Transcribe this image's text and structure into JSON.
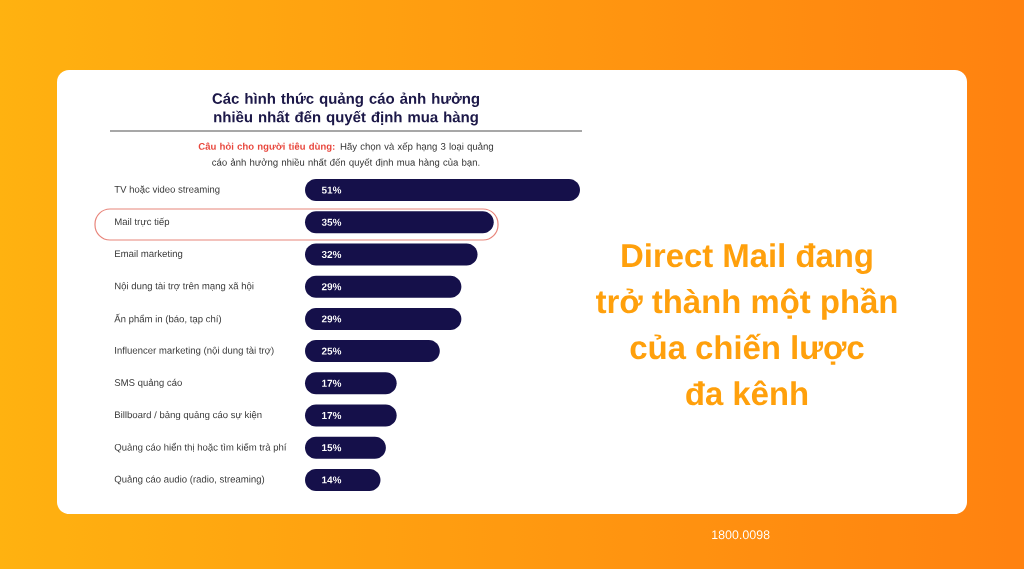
{
  "chart_data": {
    "type": "bar",
    "orientation": "horizontal",
    "title": "Các hình thức quảng cáo ảnh hưởng nhiều nhất đến quyết định mua hàng",
    "subtitle": "**Câu hỏi cho người tiêu dùng:** Hãy chọn và xếp hạng 3 loại quảng cáo ảnh hưởng nhiều nhất đến quyết định mua hàng của bạn.",
    "categories": [
      "TV hoặc video streaming",
      "Mail trực tiếp",
      "Email marketing",
      "Nội dung tài trợ trên mạng xã hội",
      "Ấn phẩm in (báo, tạp chí)",
      "Influencer marketing (nội dung tài trợ)",
      "SMS quảng cáo",
      "Billboard / bảng quảng cáo sự kiện",
      "Quảng cáo hiển thị hoặc tìm kiếm trả phí",
      "Quảng cáo audio (radio, streaming)"
    ],
    "values": [
      51,
      35,
      32,
      29,
      29,
      25,
      17,
      17,
      15,
      14
    ],
    "value_labels": [
      "51%",
      "35%",
      "32%",
      "29%",
      "29%",
      "25%",
      "17%",
      "17%",
      "15%",
      "14%"
    ],
    "color": "#15104a",
    "annotations": [
      "Direct Mail đang",
      "trở thành một phần",
      "của chiến lược",
      "đa kênh",
      "1800.0098"
    ]
  }
}
